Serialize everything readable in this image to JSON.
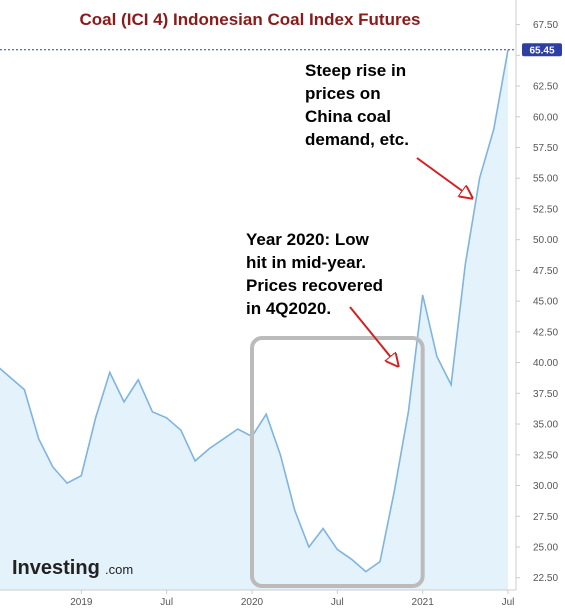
{
  "title": "Coal (ICI 4) Indonesian Coal Index Futures",
  "colors": {
    "title": "#8b1a1a",
    "line": "#7fb4e0",
    "area": "#e3f2fb",
    "price_line": "#2e3fa3",
    "price_tag": "#2e3fa3",
    "arrow": "#d42020",
    "box": "#bbbbbb"
  },
  "branding": {
    "logo_main": "Investing",
    "logo_sub": ".com"
  },
  "annotations": [
    {
      "lines": [
        "Steep rise in",
        "prices on",
        "China coal",
        "demand, etc."
      ],
      "arrow": "red-arrow"
    },
    {
      "lines": [
        "Year 2020: Low",
        "hit in mid-year.",
        "Prices recovered",
        "in 4Q2020."
      ],
      "arrow": "red-arrow"
    }
  ],
  "highlight_box": {
    "from": "2020-01",
    "to": "2021-01"
  },
  "chart_data": {
    "type": "area",
    "title": "Coal (ICI 4) Indonesian Coal Index Futures",
    "xlabel": "",
    "ylabel": "",
    "grid": false,
    "current_price": 65.45,
    "current_price_label": "65.45",
    "ylim": [
      21.5,
      69.5
    ],
    "y_ticks": [
      "67.50",
      "65.00",
      "62.50",
      "60.00",
      "57.50",
      "55.00",
      "52.50",
      "50.00",
      "47.50",
      "45.00",
      "42.50",
      "40.00",
      "37.50",
      "35.00",
      "32.50",
      "30.00",
      "27.50",
      "25.00",
      "22.50"
    ],
    "x_ticks": [
      "2019",
      "Jul",
      "2020",
      "Jul",
      "2021",
      "Jul"
    ],
    "x_tick_dates": [
      "2019-01",
      "2019-07",
      "2020-01",
      "2020-07",
      "2021-01",
      "2021-07"
    ],
    "x_range": [
      "2018-07",
      "2021-07"
    ],
    "series": [
      {
        "x": [
          "2018-07",
          "2018-08",
          "2018-09",
          "2018-10",
          "2018-11",
          "2018-12",
          "2019-01",
          "2019-02",
          "2019-03",
          "2019-04",
          "2019-05",
          "2019-06",
          "2019-07",
          "2019-08",
          "2019-09",
          "2019-10",
          "2019-11",
          "2019-12",
          "2020-01",
          "2020-02",
          "2020-03",
          "2020-04",
          "2020-05",
          "2020-06",
          "2020-07",
          "2020-08",
          "2020-09",
          "2020-10",
          "2020-11",
          "2020-12",
          "2021-01",
          "2021-02",
          "2021-03",
          "2021-04",
          "2021-05",
          "2021-06",
          "2021-07"
        ],
        "values": [
          39.8,
          38.8,
          37.8,
          33.8,
          31.5,
          30.2,
          30.8,
          35.5,
          39.2,
          36.8,
          38.6,
          36.0,
          35.5,
          34.5,
          32.0,
          33.0,
          33.8,
          34.6,
          34.0,
          35.8,
          32.5,
          28.0,
          25.0,
          26.5,
          24.8,
          24.0,
          23.0,
          23.8,
          29.5,
          36.0,
          45.5,
          40.5,
          38.2,
          48.0,
          55.0,
          59.0,
          65.45
        ]
      }
    ]
  }
}
